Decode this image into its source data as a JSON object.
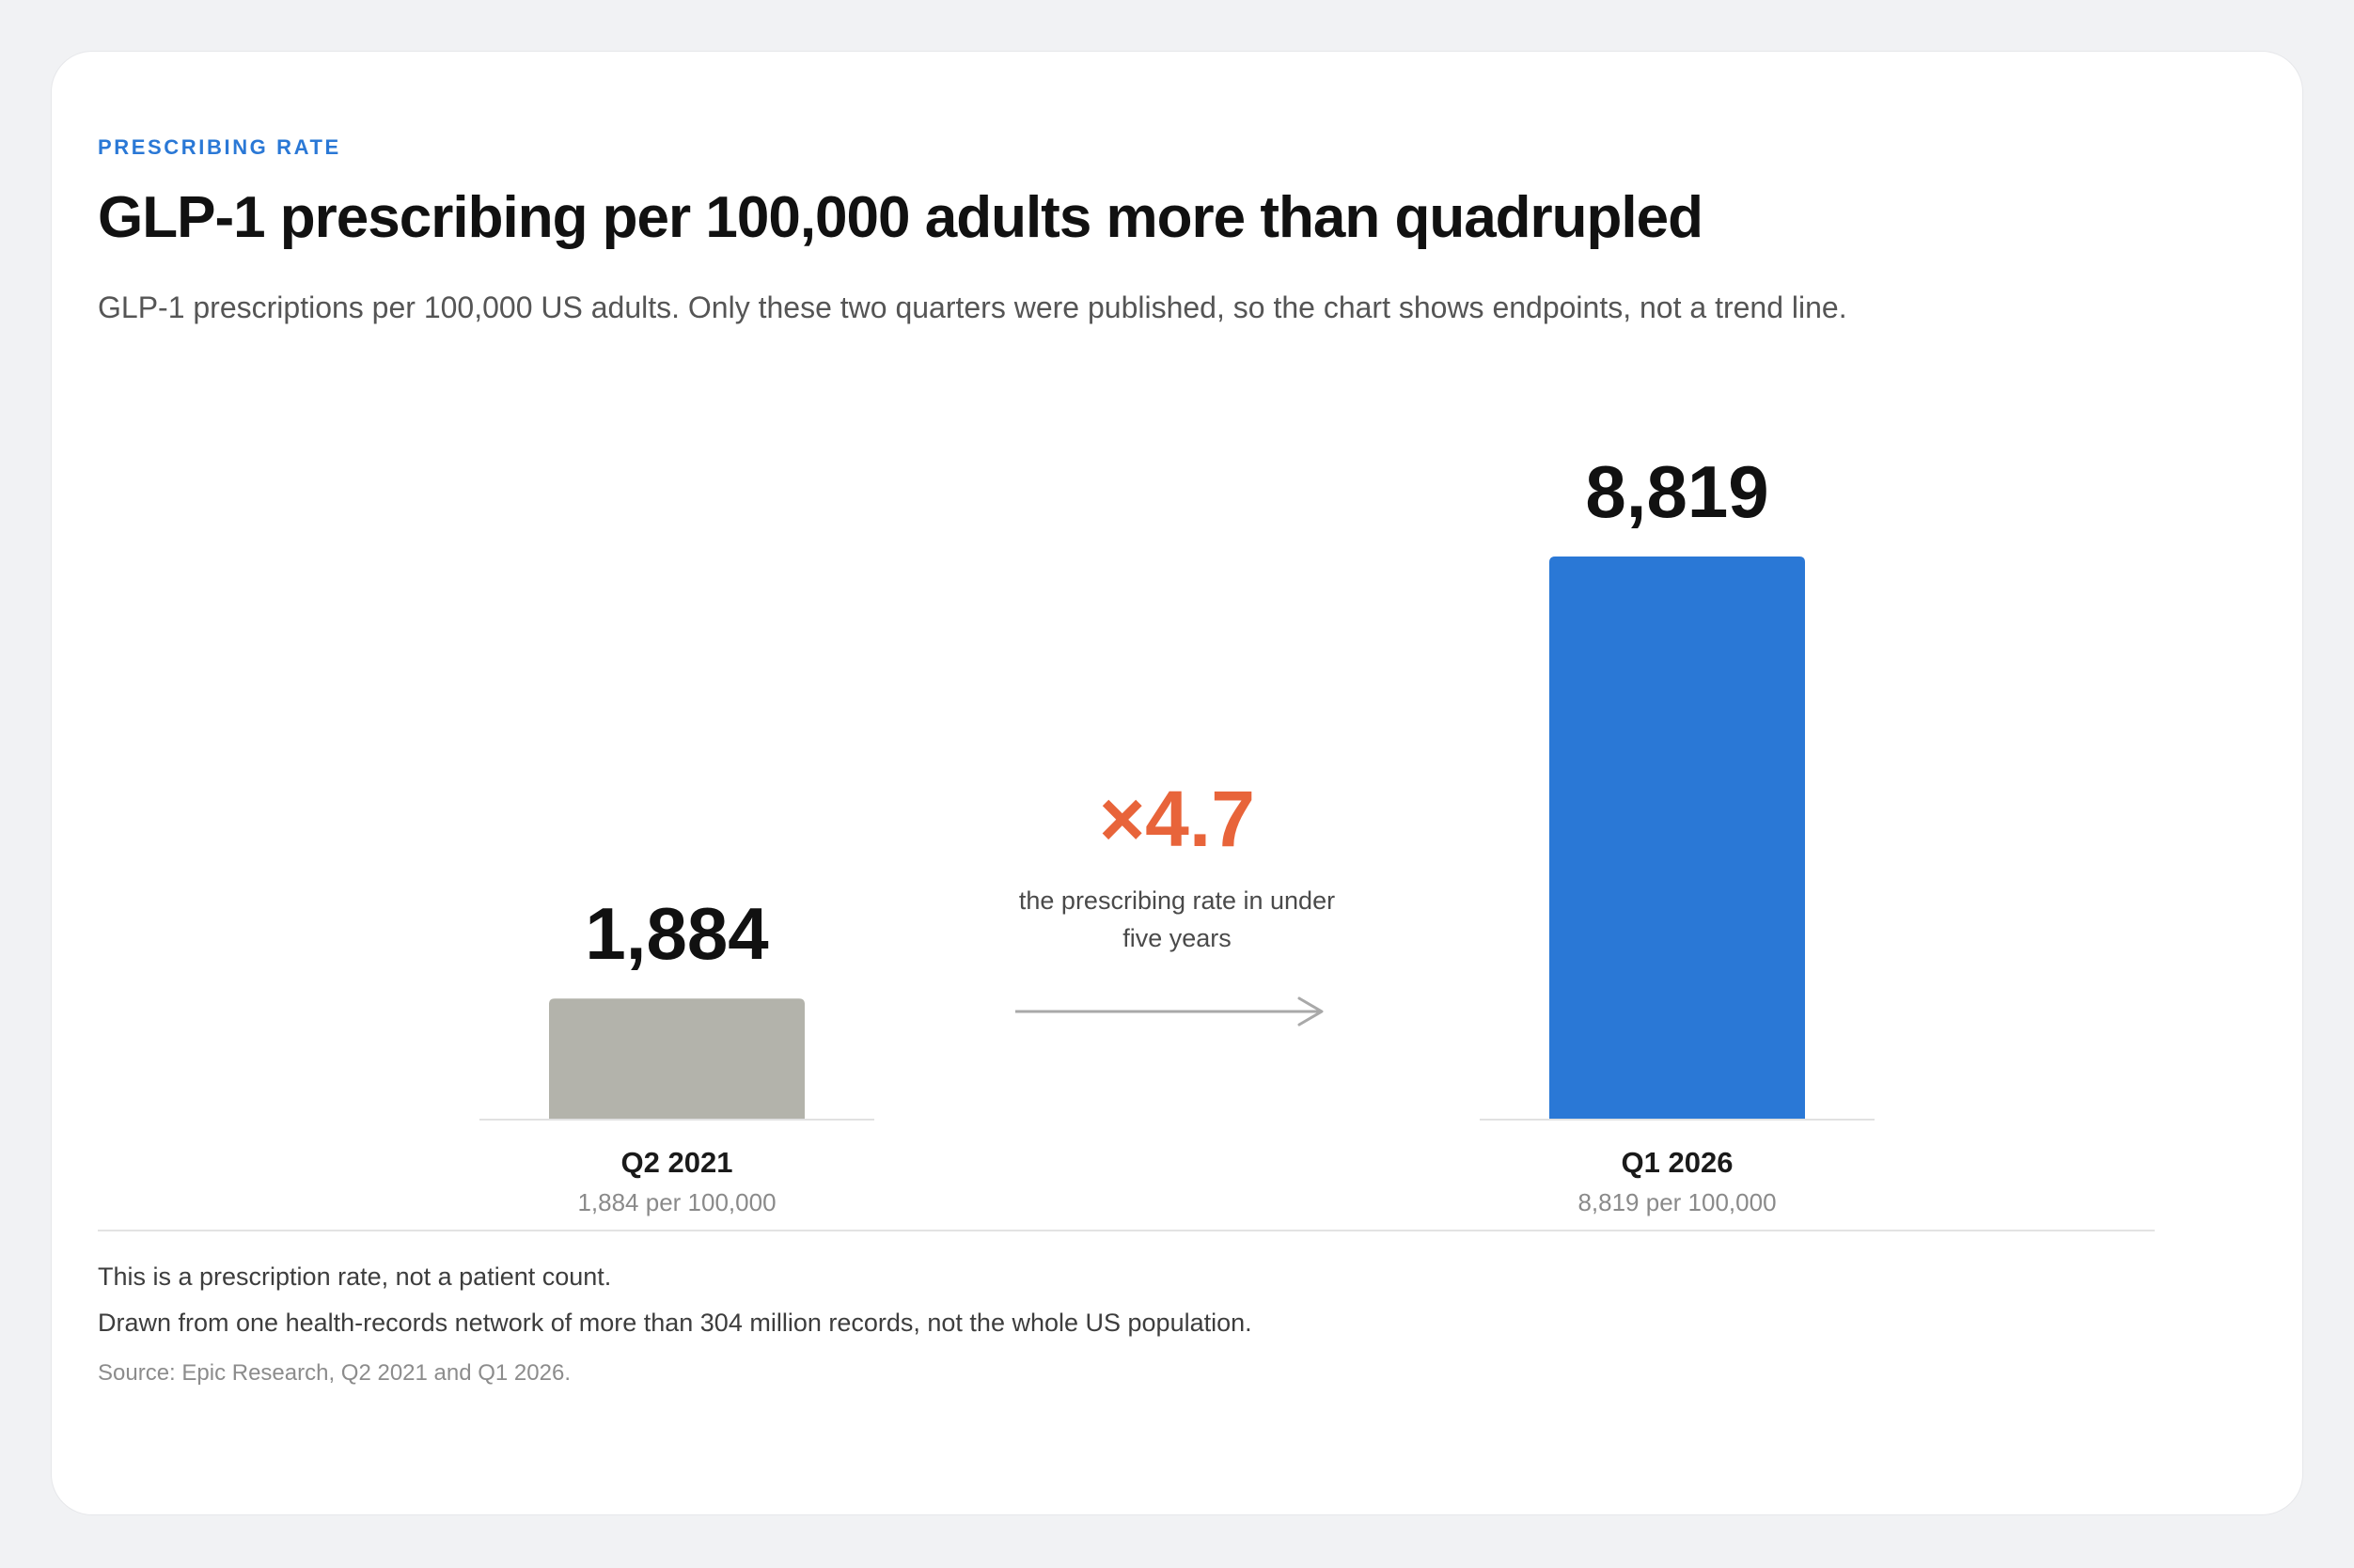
{
  "header": {
    "eyebrow": "PRESCRIBING RATE",
    "title": "GLP-1 prescribing per 100,000 adults more than quadrupled",
    "subtitle": "GLP-1 prescriptions per 100,000 US adults. Only these two quarters were published, so the chart shows endpoints, not a trend line."
  },
  "chart_data": {
    "type": "bar",
    "categories": [
      "Q2 2021",
      "Q1 2026"
    ],
    "values": [
      1884,
      8819
    ],
    "value_labels": [
      "1,884",
      "8,819"
    ],
    "sublabels": [
      "1,884 per 100,000",
      "8,819 per 100,000"
    ],
    "bar_colors": [
      "#b3b3ab",
      "#2a78d6"
    ],
    "ylim": [
      0,
      8819
    ],
    "grid": false,
    "annotation": {
      "multiplier": "×4.7",
      "caption_lines": [
        "the prescribing rate in under",
        "five years"
      ],
      "color": "#e8643a"
    }
  },
  "footer": {
    "notes": [
      "This is a prescription rate, not a patient count.",
      "Drawn from one health-records network of more than 304 million records, not the whole US population."
    ],
    "source": "Source: Epic Research, Q2 2021 and Q1 2026."
  }
}
